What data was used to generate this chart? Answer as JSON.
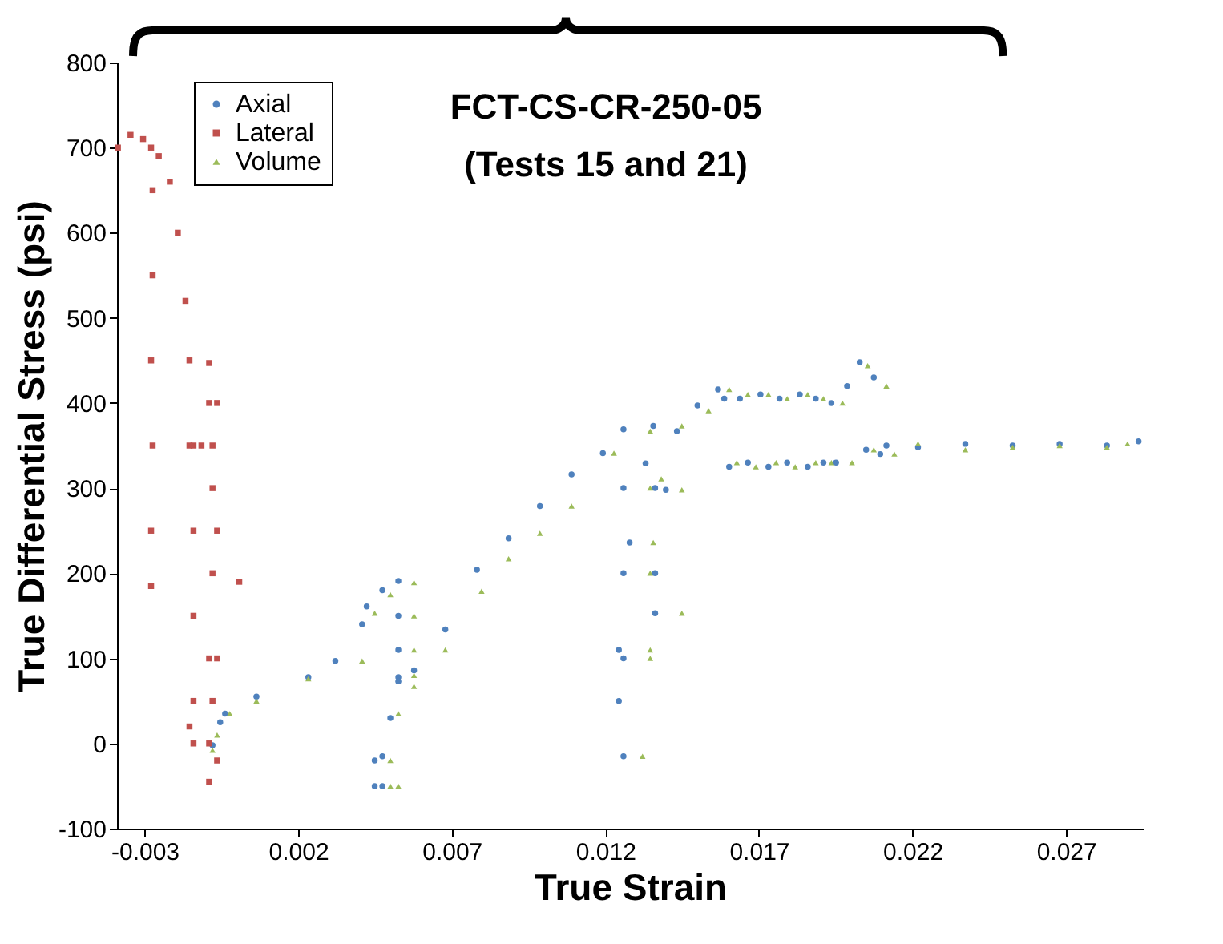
{
  "chart_data": {
    "type": "scatter",
    "title": "FCT-CS-CR-250-05",
    "subtitle": "(Tests 15 and 21)",
    "xlabel": "True Strain",
    "ylabel": "True Differential Stress (psi)",
    "xlim": [
      -0.0039,
      0.0295
    ],
    "xticks": [
      -0.003,
      0.002,
      0.007,
      0.012,
      0.017,
      0.022,
      0.027
    ],
    "ylim": [
      -100,
      800
    ],
    "yticks": [
      -100,
      0,
      100,
      200,
      300,
      400,
      500,
      600,
      700,
      800
    ],
    "grid": false,
    "legend": "top left",
    "series": [
      {
        "name": "Axial",
        "color": "#4f81bd",
        "marker": "circle",
        "x": [
          -0.00079,
          -0.00054,
          -0.00038,
          0.00064,
          0.00233,
          0.00321,
          0.00408,
          0.00423,
          0.00474,
          0.00526,
          0.00526,
          0.00526,
          0.00526,
          0.00474,
          0.00449,
          0.00449,
          0.00474,
          0.005,
          0.00526,
          0.00577,
          0.00679,
          0.00782,
          0.00885,
          0.00987,
          0.0109,
          0.01192,
          0.01259,
          0.01259,
          0.01259,
          0.01259,
          0.01259,
          0.01244,
          0.01244,
          0.01279,
          0.01331,
          0.01356,
          0.01362,
          0.01362,
          0.01362,
          0.01397,
          0.01433,
          0.015,
          0.01567,
          0.01587,
          0.01603,
          0.01638,
          0.01664,
          0.01705,
          0.01731,
          0.01767,
          0.01792,
          0.01833,
          0.01859,
          0.01885,
          0.0191,
          0.01936,
          0.01951,
          0.01987,
          0.02028,
          0.02049,
          0.02074,
          0.02095,
          0.02115,
          0.02218,
          0.02372,
          0.02526,
          0.02679,
          0.02833,
          0.02936
        ],
        "values": [
          -2,
          25,
          35,
          55,
          78,
          97,
          140,
          161,
          180,
          191,
          150,
          110,
          78,
          -50,
          -50,
          -20,
          -15,
          30,
          73,
          86,
          134,
          204,
          241,
          279,
          316,
          341,
          369,
          300,
          200,
          100,
          -15,
          50,
          110,
          236,
          329,
          373,
          300,
          200,
          153,
          298,
          367,
          397,
          416,
          405,
          325,
          405,
          330,
          410,
          325,
          405,
          330,
          410,
          325,
          405,
          330,
          400,
          330,
          420,
          448,
          345,
          430,
          340,
          350,
          348,
          352,
          350,
          352,
          350,
          355
        ]
      },
      {
        "name": "Lateral",
        "color": "#c0504d",
        "marker": "square",
        "x": [
          -0.00387,
          -0.00346,
          -0.00305,
          -0.00279,
          -0.00274,
          -0.00274,
          -0.00279,
          -0.00274,
          -0.00279,
          -0.00279,
          -0.00254,
          -0.00218,
          -0.00192,
          -0.00167,
          -0.00154,
          -0.00141,
          -0.00141,
          -0.00141,
          -0.00141,
          -0.00154,
          -0.00141,
          -0.0009,
          -0.0009,
          -0.00079,
          -0.00154,
          -0.00115,
          -0.00079,
          -0.00079,
          -0.0009,
          -0.00079,
          -0.0009,
          -0.0009,
          -0.00064,
          -0.00064,
          -0.00064,
          -0.00064,
          8e-05
        ],
        "values": [
          700,
          715,
          710,
          700,
          650,
          550,
          450,
          350,
          250,
          185,
          690,
          660,
          600,
          520,
          450,
          350,
          250,
          150,
          50,
          20,
          0,
          447,
          400,
          350,
          350,
          350,
          300,
          200,
          100,
          50,
          0,
          -45,
          -20,
          100,
          250,
          400,
          190
        ]
      },
      {
        "name": "Volume",
        "color": "#9bbb59",
        "marker": "triangle",
        "x": [
          -0.00079,
          -0.00064,
          -0.00023,
          0.00064,
          0.00233,
          0.00408,
          0.00449,
          0.005,
          0.00577,
          0.00577,
          0.00577,
          0.00577,
          0.00526,
          0.005,
          0.005,
          0.00526,
          0.00577,
          0.00679,
          0.00797,
          0.00885,
          0.00987,
          0.0109,
          0.01228,
          0.01346,
          0.01346,
          0.01346,
          0.01346,
          0.01321,
          0.01346,
          0.01356,
          0.01382,
          0.01449,
          0.01449,
          0.01449,
          0.01536,
          0.01603,
          0.01628,
          0.01664,
          0.0169,
          0.01731,
          0.01756,
          0.01792,
          0.01818,
          0.01859,
          0.01885,
          0.0191,
          0.01936,
          0.01972,
          0.02003,
          0.02054,
          0.02074,
          0.02115,
          0.02141,
          0.02218,
          0.02372,
          0.02526,
          0.02679,
          0.02833,
          0.029
        ],
        "values": [
          -8,
          10,
          35,
          50,
          76,
          97,
          153,
          175,
          189,
          150,
          110,
          80,
          -50,
          -50,
          -20,
          35,
          67,
          110,
          179,
          217,
          247,
          279,
          341,
          367,
          300,
          200,
          100,
          -15,
          110,
          236,
          311,
          373,
          298,
          153,
          391,
          416,
          330,
          410,
          325,
          410,
          330,
          405,
          325,
          410,
          330,
          405,
          330,
          400,
          330,
          444,
          345,
          420,
          340,
          352,
          345,
          348,
          350,
          348,
          352
        ]
      }
    ]
  }
}
